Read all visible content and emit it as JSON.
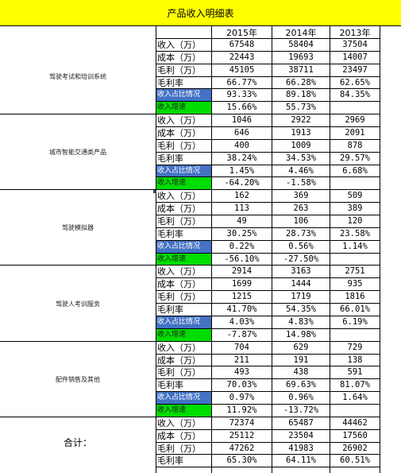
{
  "title": "产品收入明细表",
  "years": [
    "2015年",
    "2014年",
    "2013年"
  ],
  "groups": [
    {
      "name": "驾驶考试和培训系统",
      "rows": [
        {
          "label": "收入（万）",
          "style": "plain",
          "values": [
            "67548",
            "58404",
            "37504"
          ]
        },
        {
          "label": "成本（万）",
          "style": "plain",
          "values": [
            "22443",
            "19693",
            "14007"
          ]
        },
        {
          "label": "毛利（万）",
          "style": "plain",
          "values": [
            "45105",
            "38711",
            "23497"
          ]
        },
        {
          "label": "毛利率",
          "style": "plain",
          "values": [
            "66.77%",
            "66.28%",
            "62.65%"
          ]
        },
        {
          "label": "收入占比情况",
          "style": "blue",
          "values": [
            "93.33%",
            "89.18%",
            "84.35%"
          ]
        },
        {
          "label": "收入增速",
          "style": "green",
          "values": [
            "15.66%",
            "55.73%",
            ""
          ]
        }
      ]
    },
    {
      "name": "城市智能交通类产品",
      "rows": [
        {
          "label": "收入（万）",
          "style": "plain",
          "values": [
            "1046",
            "2922",
            "2969"
          ]
        },
        {
          "label": "成本（万）",
          "style": "plain",
          "values": [
            "646",
            "1913",
            "2091"
          ]
        },
        {
          "label": "毛利（万）",
          "style": "plain",
          "values": [
            "400",
            "1009",
            "878"
          ]
        },
        {
          "label": "毛利率",
          "style": "plain",
          "values": [
            "38.24%",
            "34.53%",
            "29.57%"
          ]
        },
        {
          "label": "收入占比情况",
          "style": "blue",
          "values": [
            "1.45%",
            "4.46%",
            "6.68%"
          ]
        },
        {
          "label": "收入增速",
          "style": "green",
          "values": [
            "-64.20%",
            "-1.58%",
            ""
          ]
        }
      ]
    },
    {
      "name": "驾驶模拟器",
      "rows": [
        {
          "label": "收入（万）",
          "style": "plain",
          "values": [
            "162",
            "369",
            "509"
          ]
        },
        {
          "label": "成本（万）",
          "style": "plain",
          "values": [
            "113",
            "263",
            "389"
          ]
        },
        {
          "label": "毛利（万）",
          "style": "plain",
          "values": [
            "49",
            "106",
            "120"
          ]
        },
        {
          "label": "毛利率",
          "style": "plain",
          "values": [
            "30.25%",
            "28.73%",
            "23.58%"
          ]
        },
        {
          "label": "收入占比情况",
          "style": "blue",
          "values": [
            "0.22%",
            "0.56%",
            "1.14%"
          ]
        },
        {
          "label": "收入增速",
          "style": "green",
          "values": [
            "-56.10%",
            "-27.50%",
            ""
          ]
        }
      ]
    },
    {
      "name": "驾驶人考训服务",
      "rows": [
        {
          "label": "收入（万）",
          "style": "plain",
          "values": [
            "2914",
            "3163",
            "2751"
          ]
        },
        {
          "label": "成本（万）",
          "style": "plain",
          "values": [
            "1699",
            "1444",
            "935"
          ]
        },
        {
          "label": "毛利（万）",
          "style": "plain",
          "values": [
            "1215",
            "1719",
            "1816"
          ]
        },
        {
          "label": "毛利率",
          "style": "plain",
          "values": [
            "41.70%",
            "54.35%",
            "66.01%"
          ]
        },
        {
          "label": "收入占比情况",
          "style": "blue",
          "values": [
            "4.03%",
            "4.83%",
            "6.19%"
          ]
        },
        {
          "label": "收入增速",
          "style": "green",
          "values": [
            "-7.87%",
            "14.98%",
            ""
          ]
        }
      ]
    },
    {
      "name": "配件销售及其他",
      "rows": [
        {
          "label": "收入（万）",
          "style": "plain",
          "values": [
            "704",
            "629",
            "729"
          ]
        },
        {
          "label": "成本（万）",
          "style": "plain",
          "values": [
            "211",
            "191",
            "138"
          ]
        },
        {
          "label": "毛利（万）",
          "style": "plain",
          "values": [
            "493",
            "438",
            "591"
          ]
        },
        {
          "label": "毛利率",
          "style": "plain",
          "values": [
            "70.03%",
            "69.63%",
            "81.07%"
          ]
        },
        {
          "label": "收入占比情况",
          "style": "blue",
          "values": [
            "0.97%",
            "0.96%",
            "1.64%"
          ]
        },
        {
          "label": "收入增速",
          "style": "green",
          "values": [
            "11.92%",
            "-13.72%",
            ""
          ]
        }
      ]
    },
    {
      "name": "合计：",
      "total": true,
      "rows": [
        {
          "label": "收入（万）",
          "style": "plain",
          "values": [
            "72374",
            "65487",
            "44462"
          ]
        },
        {
          "label": "成本（万）",
          "style": "plain",
          "values": [
            "25112",
            "23504",
            "17560"
          ]
        },
        {
          "label": "毛利（万）",
          "style": "plain",
          "values": [
            "47262",
            "41983",
            "26902"
          ]
        },
        {
          "label": "毛利率",
          "style": "plain",
          "values": [
            "65.30%",
            "64.11%",
            "60.51%"
          ]
        }
      ]
    }
  ],
  "colors": {
    "title_bg": "#ffff00",
    "share_bg": "#4472c4",
    "growth_bg": "#00dd00"
  }
}
